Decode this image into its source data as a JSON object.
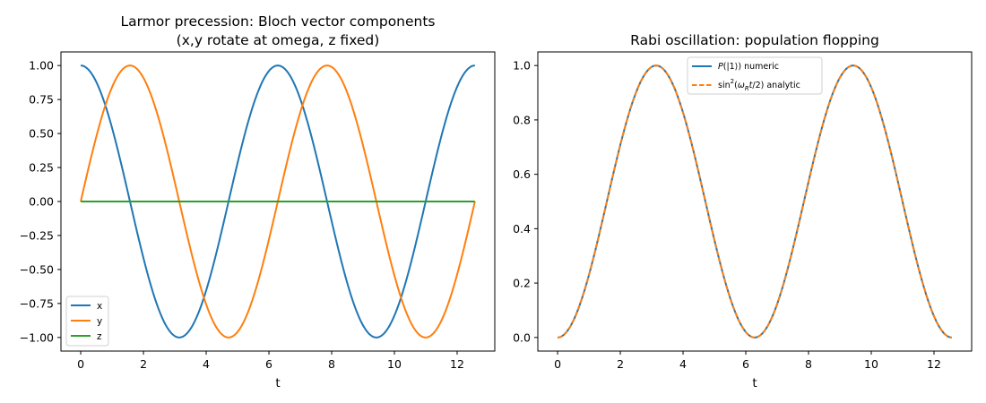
{
  "chart_data": [
    {
      "type": "line",
      "title": "Larmor precession: Bloch vector components\n(x,y rotate at omega, z fixed)",
      "xlabel": "t",
      "ylabel": "",
      "xlim": [
        -0.63,
        13.2
      ],
      "ylim": [
        -1.1,
        1.1
      ],
      "xticks": [
        0,
        2,
        4,
        6,
        8,
        10,
        12
      ],
      "xtick_labels": [
        "0",
        "2",
        "4",
        "6",
        "8",
        "10",
        "12"
      ],
      "yticks": [
        1.0,
        0.75,
        0.5,
        0.25,
        0.0,
        -0.25,
        -0.5,
        -0.75,
        -1.0
      ],
      "ytick_labels": [
        "1.00",
        "0.75",
        "0.50",
        "0.25",
        "0.00",
        "−0.25",
        "−0.50",
        "−0.75",
        "−1.00"
      ],
      "grid": false,
      "legend_position": "lower-left",
      "x_range": [
        0,
        12.566
      ],
      "series": [
        {
          "name": "x",
          "color": "#1f77b4",
          "function": "cos(t)"
        },
        {
          "name": "y",
          "color": "#ff7f0e",
          "function": "sin(t)"
        },
        {
          "name": "z",
          "color": "#2ca02c",
          "function": "0"
        }
      ]
    },
    {
      "type": "line",
      "title": "Rabi oscillation: population flopping",
      "xlabel": "t",
      "ylabel": "",
      "xlim": [
        -0.63,
        13.2
      ],
      "ylim": [
        -0.05,
        1.05
      ],
      "xticks": [
        0,
        2,
        4,
        6,
        8,
        10,
        12
      ],
      "xtick_labels": [
        "0",
        "2",
        "4",
        "6",
        "8",
        "10",
        "12"
      ],
      "yticks": [
        1.0,
        0.8,
        0.6,
        0.4,
        0.2,
        0.0
      ],
      "ytick_labels": [
        "1.0",
        "0.8",
        "0.6",
        "0.4",
        "0.2",
        "0.0"
      ],
      "grid": false,
      "legend_position": "upper-center",
      "x_range": [
        0,
        12.566
      ],
      "series": [
        {
          "name": "P(|1⟩) numeric",
          "color": "#1f77b4",
          "style": "solid",
          "function": "sin^2(t/2)"
        },
        {
          "name": "sin²(ω_R t/2) analytic",
          "color": "#ff7f0e",
          "style": "dashed",
          "function": "sin^2(t/2)"
        }
      ]
    }
  ],
  "legend_text": {
    "left": [
      "x",
      "y",
      "z"
    ],
    "right_numeric_prefix": "P",
    "right_numeric_rest": "(|1⟩) numeric",
    "right_analytic_fn": "sin",
    "right_analytic_sup": "2",
    "right_analytic_omega": "ω",
    "right_analytic_sub": "R",
    "right_analytic_t": "t",
    "right_analytic_rest": "/2) analytic"
  },
  "titles": {
    "left_line1": "Larmor precession: Bloch vector components",
    "left_line2": "(x,y rotate at omega, z fixed)",
    "right": "Rabi oscillation: population flopping"
  }
}
